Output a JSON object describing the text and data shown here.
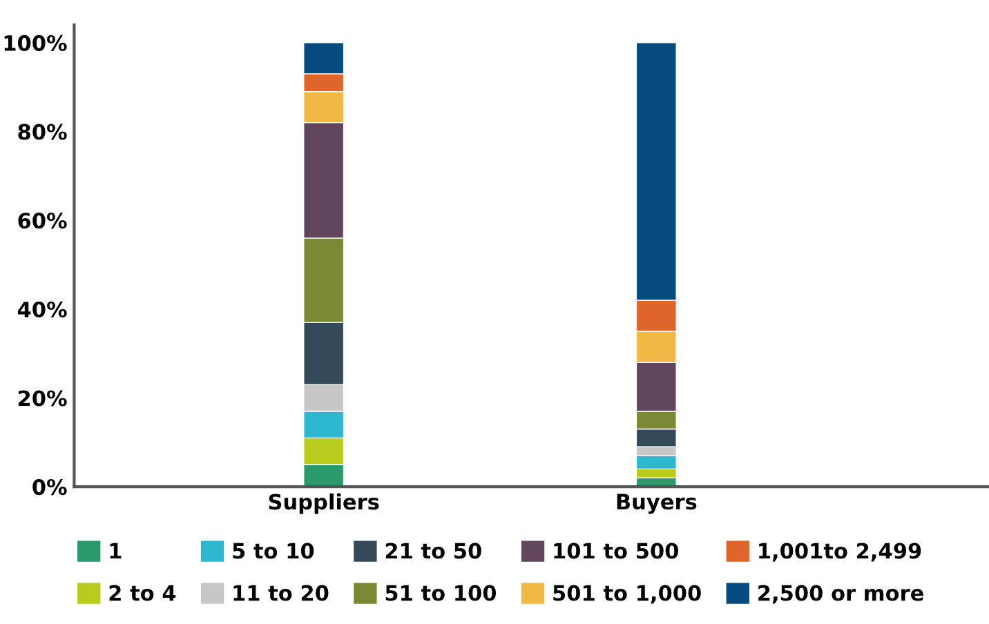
{
  "chart_data": {
    "type": "bar",
    "stacked": true,
    "categories": [
      "Suppliers",
      "Buyers"
    ],
    "series": [
      {
        "name": "1",
        "color": "#2a9a6a",
        "values": [
          5,
          2
        ]
      },
      {
        "name": "2 to 4",
        "color": "#b9cc1e",
        "values": [
          6,
          2
        ]
      },
      {
        "name": "5 to 10",
        "color": "#2eb8d0",
        "values": [
          6,
          3
        ]
      },
      {
        "name": "11 to 20",
        "color": "#c8c6c6",
        "values": [
          6,
          2
        ]
      },
      {
        "name": "21 to 50",
        "color": "#344a5a",
        "values": [
          14,
          4
        ]
      },
      {
        "name": "51 to 100",
        "color": "#7a8a34",
        "values": [
          19,
          4
        ]
      },
      {
        "name": "101 to 500",
        "color": "#62465e",
        "values": [
          26,
          11
        ]
      },
      {
        "name": "501 to 1,000",
        "color": "#f2b844",
        "values": [
          7,
          7
        ]
      },
      {
        "name": "1,001to 2,499",
        "color": "#e0652a",
        "values": [
          4,
          7
        ]
      },
      {
        "name": "2,500 or more",
        "color": "#064b80",
        "values": [
          7,
          58
        ]
      }
    ],
    "ylim": [
      0,
      104
    ],
    "yticks": [
      {
        "value": 0,
        "label": "0%"
      },
      {
        "value": 20,
        "label": "20%"
      },
      {
        "value": 40,
        "label": "40%"
      },
      {
        "value": 60,
        "label": "60%"
      },
      {
        "value": 80,
        "label": "80%"
      },
      {
        "value": 100,
        "label": "100%"
      }
    ],
    "grid": false,
    "legend": "bottom"
  }
}
